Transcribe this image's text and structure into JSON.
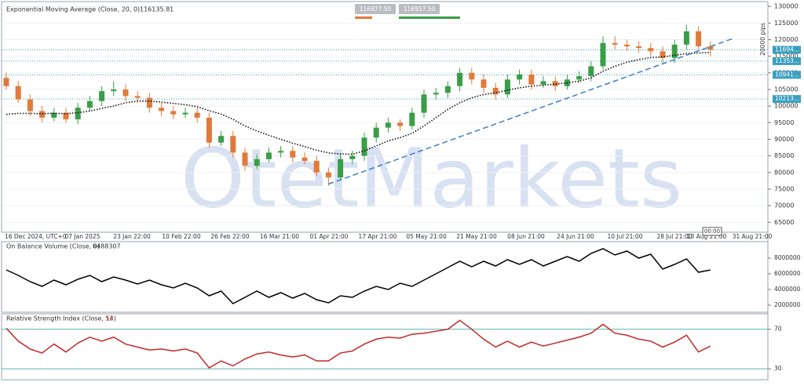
{
  "chart_data": [
    {
      "type": "candlestick",
      "title": "Exponential Moving Average (Close, 20, 0)",
      "title_value": 116135.81,
      "quote_buttons": [
        "116977.50",
        "116957.50"
      ],
      "watermark": "OtetMarkets",
      "y_axis_label": "20000 pips",
      "time_marker": "00:00",
      "x_labels": [
        "16 Dec 2024, UTC+0",
        "07 Jan 2025",
        "23 Jan 22:00",
        "10 Feb 22:00",
        "26 Feb 22:00",
        "16 Mar 21:00",
        "01 Apr 21:00",
        "17 Apr 21:00",
        "05 May 21:00",
        "21 May 21:00",
        "08 Jun 21:00",
        "24 Jun 21:00",
        "10 Jul 21:00",
        "28 Jul 21:00",
        "13 Aug 21:00",
        "31 Aug 21:00"
      ],
      "up_color": "#3a9e48",
      "down_color": "#e07a3c",
      "open": [
        108500,
        106000,
        102000,
        98500,
        96500,
        98000,
        96000,
        99500,
        101500,
        104500,
        105000,
        103000,
        102500,
        99500,
        98500,
        97500,
        98000,
        96500,
        89000,
        91000,
        86000,
        82000,
        84000,
        86000,
        86500,
        84500,
        83500,
        80000,
        78500,
        84000,
        85000,
        90500,
        93500,
        95000,
        94000,
        98000,
        103500,
        104000,
        106000,
        110000,
        108000,
        105500,
        103500,
        108000,
        109500,
        106500,
        107500,
        106000,
        108000,
        109000,
        112000,
        119000,
        118500,
        118000,
        117500,
        116500,
        114500,
        118500,
        122500,
        118000
      ],
      "high": [
        110000,
        107500,
        103500,
        100000,
        99500,
        99500,
        101000,
        103000,
        106000,
        107500,
        106500,
        104500,
        104000,
        101000,
        100000,
        99500,
        99500,
        98000,
        92500,
        92500,
        87500,
        85500,
        87500,
        88000,
        88000,
        86000,
        85000,
        81500,
        85500,
        86500,
        92000,
        95000,
        96500,
        96000,
        99500,
        105000,
        105500,
        107500,
        111500,
        111500,
        109500,
        107000,
        109500,
        111000,
        111000,
        109000,
        109000,
        109500,
        110500,
        113500,
        121000,
        121000,
        120000,
        119500,
        119000,
        118000,
        120000,
        124500,
        124000,
        119500
      ],
      "low": [
        105000,
        101000,
        97000,
        95000,
        95500,
        95000,
        94500,
        98500,
        100000,
        103000,
        101500,
        101000,
        98000,
        97000,
        96000,
        96500,
        95000,
        87500,
        88000,
        84500,
        80500,
        81000,
        83000,
        84500,
        83000,
        82500,
        79000,
        76000,
        77500,
        82500,
        83500,
        89000,
        92000,
        92500,
        93000,
        96500,
        102000,
        102500,
        104500,
        106500,
        104000,
        102000,
        102500,
        106500,
        105000,
        105500,
        104500,
        105000,
        107000,
        107500,
        111000,
        117000,
        116500,
        116000,
        115000,
        113000,
        113000,
        117000,
        117000,
        115000
      ],
      "close": [
        106000,
        102000,
        98500,
        96500,
        98000,
        96000,
        99500,
        101500,
        104500,
        105000,
        103000,
        102500,
        99500,
        98500,
        97500,
        98000,
        96500,
        89000,
        91000,
        86000,
        82000,
        84000,
        86000,
        86500,
        84500,
        83500,
        80000,
        78500,
        84000,
        85000,
        90500,
        93500,
        95000,
        94000,
        98000,
        103500,
        104000,
        106000,
        110000,
        108000,
        105500,
        103500,
        108000,
        109500,
        106500,
        107500,
        106000,
        108000,
        109000,
        112000,
        119000,
        118500,
        118000,
        117500,
        116500,
        114500,
        118500,
        122500,
        118000,
        117000
      ],
      "ema": {
        "color": "#111111",
        "values": [
          97500,
          97800,
          97800,
          97700,
          97800,
          97700,
          98000,
          98500,
          99300,
          100000,
          101000,
          101500,
          101500,
          101200,
          100800,
          100400,
          99800,
          98600,
          97600,
          96000,
          94000,
          92500,
          91200,
          90000,
          88800,
          87800,
          86700,
          85900,
          85600,
          85500,
          86500,
          88000,
          89500,
          90500,
          91800,
          94000,
          96500,
          99000,
          101000,
          102500,
          103500,
          104000,
          104800,
          105500,
          106000,
          106300,
          106600,
          107000,
          107500,
          108500,
          110500,
          112000,
          113200,
          114000,
          114600,
          114800,
          115300,
          115800,
          116000,
          116135.81
        ]
      },
      "trendline": {
        "color": "#3b7fc4",
        "from_index": 27,
        "from": 76500,
        "to_index": 61,
        "to": 120500
      },
      "levels": [
        {
          "value": 116940,
          "label": "11694..."
        },
        {
          "value": 113530,
          "label": "11353..."
        },
        {
          "value": 109410,
          "label": "10941..."
        },
        {
          "value": 102130,
          "label": "10213..."
        }
      ],
      "ylim": [
        62000,
        131000
      ],
      "yticks": [
        65000,
        70000,
        75000,
        80000,
        85000,
        90000,
        95000,
        100000,
        105000,
        110000,
        115000,
        120000,
        125000,
        130000
      ],
      "grid": true
    },
    {
      "type": "line",
      "title": "On Balance Volume (Close, 0)",
      "title_value": 6488307,
      "color": "#000000",
      "values": [
        6500000,
        5800000,
        5000000,
        4400000,
        5200000,
        4600000,
        5300000,
        5800000,
        5000000,
        5600000,
        5200000,
        4700000,
        5200000,
        4600000,
        4200000,
        4800000,
        4200000,
        3200000,
        3800000,
        2200000,
        3000000,
        3800000,
        3000000,
        3600000,
        2900000,
        3500000,
        2700000,
        2300000,
        3200000,
        3000000,
        3800000,
        4400000,
        4000000,
        4800000,
        4400000,
        5200000,
        6000000,
        6800000,
        7600000,
        6900000,
        7600000,
        7000000,
        7800000,
        7200000,
        7800000,
        7000000,
        7600000,
        8200000,
        7600000,
        8600000,
        9200000,
        8400000,
        8900000,
        8000000,
        8500000,
        6600000,
        7200000,
        7900000,
        6200000,
        6488307
      ],
      "ylim": [
        1200000,
        9900000
      ],
      "yticks": [
        2000000,
        4000000,
        6000000,
        8000000
      ]
    },
    {
      "type": "line",
      "title": "Relative Strength Index (Close, 14)",
      "title_value": 53,
      "color": "#c62828",
      "level_color": "#5fb3b3",
      "values": [
        71,
        58,
        50,
        46,
        55,
        47,
        56,
        62,
        58,
        62,
        55,
        52,
        49,
        50,
        48,
        50,
        46,
        31,
        38,
        33,
        40,
        45,
        47,
        44,
        42,
        44,
        38,
        38,
        46,
        48,
        55,
        60,
        62,
        61,
        65,
        66,
        68,
        70,
        79,
        70,
        60,
        52,
        58,
        52,
        57,
        53,
        56,
        59,
        62,
        66,
        75,
        66,
        64,
        60,
        58,
        52,
        57,
        64,
        47,
        53
      ],
      "ylim": [
        19,
        84
      ],
      "yticks": [
        30,
        70
      ]
    }
  ]
}
